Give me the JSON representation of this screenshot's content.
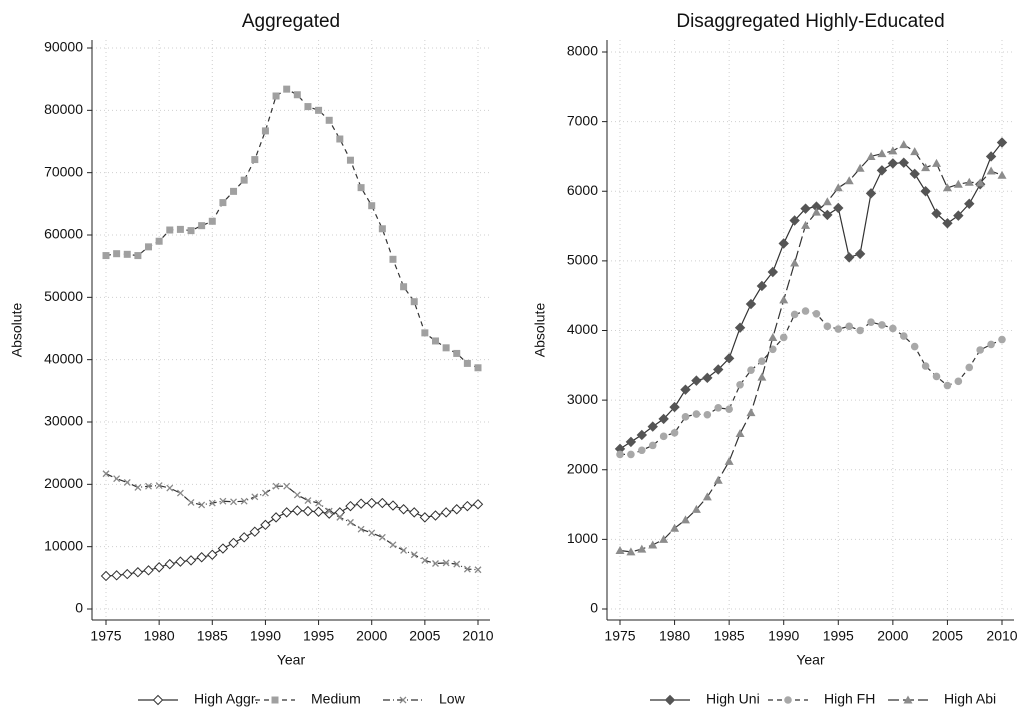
{
  "chart_data": [
    {
      "type": "line",
      "title": "Aggregated",
      "xlabel": "Year",
      "ylabel": "Absolute",
      "x": [
        1975,
        1976,
        1977,
        1978,
        1979,
        1980,
        1981,
        1982,
        1983,
        1984,
        1985,
        1986,
        1987,
        1988,
        1989,
        1990,
        1991,
        1992,
        1993,
        1994,
        1995,
        1996,
        1997,
        1998,
        1999,
        2000,
        2001,
        2002,
        2003,
        2004,
        2005,
        2006,
        2007,
        2008,
        2009,
        2010
      ],
      "xlim": [
        1975,
        2010
      ],
      "xticks": [
        1975,
        1980,
        1985,
        1990,
        1995,
        2000,
        2005,
        2010
      ],
      "ylim": [
        0,
        90000
      ],
      "yticks": [
        0,
        10000,
        20000,
        30000,
        40000,
        50000,
        60000,
        70000,
        80000,
        90000
      ],
      "grid": true,
      "legend": "bottom",
      "series": [
        {
          "name": "High Aggr.",
          "color": "#ffffff",
          "marker": "hollow-diamond",
          "line_style": "solid",
          "values": [
            5300,
            5400,
            5600,
            5900,
            6200,
            6700,
            7200,
            7600,
            7800,
            8300,
            8700,
            9700,
            10600,
            11500,
            12400,
            13500,
            14700,
            15500,
            15800,
            15700,
            15600,
            15300,
            15500,
            16500,
            16900,
            17000,
            17000,
            16600,
            16000,
            15500,
            14700,
            15000,
            15500,
            16000,
            16500,
            16800
          ]
        },
        {
          "name": "Medium",
          "color": "#a0a0a0",
          "marker": "square",
          "line_style": "dash",
          "values": [
            56700,
            57000,
            56900,
            56700,
            58100,
            59000,
            60800,
            60900,
            60700,
            61500,
            62200,
            65200,
            67000,
            68800,
            72100,
            76700,
            82300,
            83400,
            82500,
            80600,
            80000,
            78400,
            75400,
            72000,
            67600,
            64700,
            61000,
            56100,
            51700,
            49300,
            44300,
            43000,
            41900,
            41000,
            39400,
            38700
          ]
        },
        {
          "name": "Low",
          "color": "#888888",
          "marker": "x",
          "line_style": "dash-dot",
          "values": [
            21700,
            20900,
            20300,
            19500,
            19700,
            19800,
            19400,
            18600,
            17100,
            16700,
            17000,
            17300,
            17200,
            17300,
            18000,
            18600,
            19700,
            19700,
            18300,
            17400,
            17000,
            15700,
            14700,
            13900,
            12800,
            12200,
            11500,
            10300,
            9400,
            8700,
            7800,
            7300,
            7400,
            7200,
            6400,
            6300
          ]
        }
      ]
    },
    {
      "type": "line",
      "title": "Disaggregated Highly-Educated",
      "xlabel": "Year",
      "ylabel": "Absolute",
      "x": [
        1975,
        1976,
        1977,
        1978,
        1979,
        1980,
        1981,
        1982,
        1983,
        1984,
        1985,
        1986,
        1987,
        1988,
        1989,
        1990,
        1991,
        1992,
        1993,
        1994,
        1995,
        1996,
        1997,
        1998,
        1999,
        2000,
        2001,
        2002,
        2003,
        2004,
        2005,
        2006,
        2007,
        2008,
        2009,
        2010
      ],
      "xlim": [
        1975,
        2010
      ],
      "xticks": [
        1975,
        1980,
        1985,
        1990,
        1995,
        2000,
        2005,
        2010
      ],
      "ylim": [
        0,
        8000
      ],
      "yticks": [
        0,
        1000,
        2000,
        3000,
        4000,
        5000,
        6000,
        7000,
        8000
      ],
      "grid": true,
      "legend": "bottom",
      "series": [
        {
          "name": "High Uni",
          "color": "#555555",
          "marker": "diamond",
          "line_style": "solid",
          "values": [
            2300,
            2400,
            2500,
            2620,
            2730,
            2900,
            3150,
            3280,
            3320,
            3440,
            3600,
            4040,
            4380,
            4640,
            4840,
            5250,
            5580,
            5750,
            5780,
            5660,
            5760,
            5050,
            5100,
            5970,
            6300,
            6400,
            6410,
            6250,
            6000,
            5680,
            5540,
            5650,
            5820,
            6100,
            6500,
            6700
          ]
        },
        {
          "name": "High FH",
          "color": "#a8a8a8",
          "marker": "circle",
          "line_style": "dash",
          "values": [
            2220,
            2220,
            2280,
            2350,
            2480,
            2530,
            2760,
            2800,
            2790,
            2890,
            2870,
            3220,
            3430,
            3560,
            3730,
            3900,
            4230,
            4280,
            4240,
            4060,
            4020,
            4060,
            4000,
            4120,
            4080,
            4030,
            3920,
            3770,
            3490,
            3340,
            3210,
            3270,
            3470,
            3720,
            3800,
            3870
          ]
        },
        {
          "name": "High Abi",
          "color": "#8c8c8c",
          "marker": "triangle",
          "line_style": "long-dash",
          "values": [
            840,
            820,
            860,
            920,
            1000,
            1160,
            1280,
            1430,
            1610,
            1850,
            2120,
            2520,
            2820,
            3330,
            3900,
            4440,
            4970,
            5510,
            5700,
            5850,
            6050,
            6150,
            6330,
            6500,
            6540,
            6580,
            6670,
            6570,
            6340,
            6400,
            6050,
            6100,
            6130,
            6120,
            6290,
            6230
          ]
        }
      ]
    }
  ]
}
